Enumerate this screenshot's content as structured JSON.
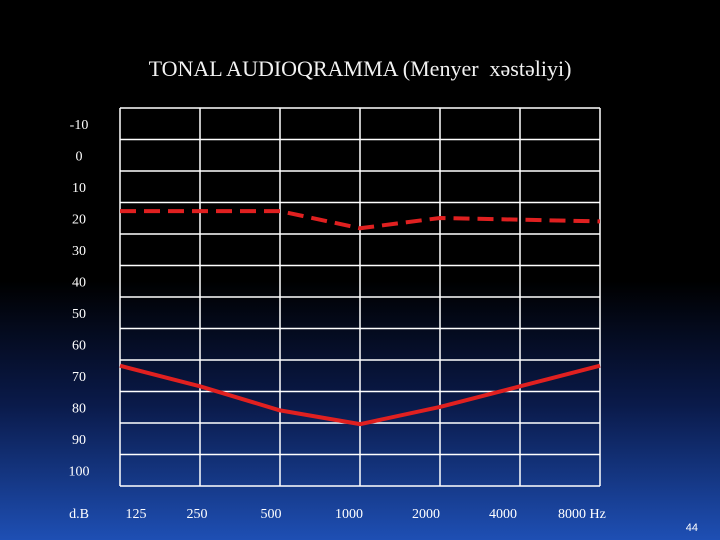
{
  "slide": {
    "page_number": "44"
  },
  "chart_data": {
    "type": "line",
    "title": "TONAL AUDIOQRAMMA (Menyer  xəstəliyi)",
    "x_unit_label": "Hz",
    "y_unit_label": "d.B",
    "categories": [
      "125",
      "250",
      "500",
      "1000",
      "2000",
      "4000",
      "8000"
    ],
    "y_ticks": [
      "-10",
      "0",
      "10",
      "20",
      "30",
      "40",
      "50",
      "60",
      "70",
      "80",
      "90",
      "100"
    ],
    "ylim": [
      -10,
      100
    ],
    "y_inverted": true,
    "grid": true,
    "series": [
      {
        "style": "dashed",
        "color": "#e02020",
        "values": [
          20,
          20,
          20,
          25,
          22,
          22.5,
          23
        ]
      },
      {
        "style": "solid",
        "color": "#e02020",
        "values": [
          65,
          71,
          78,
          82,
          77,
          71,
          65
        ]
      }
    ]
  }
}
